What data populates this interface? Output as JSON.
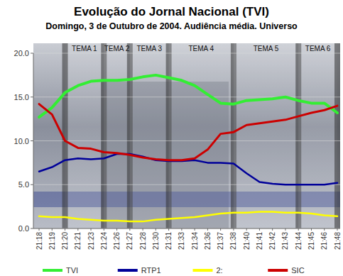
{
  "chart_data": {
    "type": "line",
    "title": "Evolução do Jornal Nacional (TVI)",
    "subtitle": "Domingo, 3 de Outubro de 2004. Audiência média. Universo",
    "categories": [
      "21:18",
      "21:19",
      "21:20",
      "21:21",
      "21:23",
      "21:24",
      "21:26",
      "21:27",
      "21:28",
      "21:30",
      "21:31",
      "21:33",
      "21:34",
      "21:36",
      "21:37",
      "21:38",
      "21:40",
      "21:41",
      "21:42",
      "21:43",
      "21:44",
      "21:45",
      "21:46",
      "21:48"
    ],
    "series": [
      {
        "name": "TVI",
        "color": "#33ee33",
        "values": [
          12.7,
          13.8,
          15.5,
          16.3,
          16.8,
          16.9,
          16.9,
          17.0,
          17.3,
          17.5,
          17.2,
          16.9,
          16.3,
          15.3,
          14.3,
          14.2,
          14.6,
          14.7,
          14.8,
          15.0,
          14.6,
          14.3,
          14.3,
          13.2
        ]
      },
      {
        "name": "RTP1",
        "color": "#000099",
        "values": [
          6.5,
          7.0,
          7.8,
          8.0,
          7.9,
          8.0,
          8.5,
          8.5,
          8.2,
          7.8,
          7.7,
          7.7,
          7.8,
          7.5,
          7.5,
          7.4,
          6.3,
          5.3,
          5.1,
          5.0,
          5.0,
          5.0,
          5.0,
          5.2
        ]
      },
      {
        "name": "2:",
        "color": "#ffff00",
        "values": [
          1.4,
          1.3,
          1.3,
          1.1,
          1.0,
          0.9,
          0.9,
          0.8,
          0.8,
          1.0,
          1.1,
          1.2,
          1.3,
          1.5,
          1.7,
          1.8,
          1.8,
          1.9,
          1.9,
          1.8,
          1.8,
          1.7,
          1.5,
          1.4
        ]
      },
      {
        "name": "SIC",
        "color": "#cc0000",
        "values": [
          14.2,
          13.0,
          10.0,
          9.2,
          9.1,
          8.7,
          8.6,
          8.4,
          8.1,
          7.9,
          7.8,
          7.8,
          8.0,
          9.0,
          10.8,
          11.0,
          11.8,
          12.0,
          12.2,
          12.4,
          12.8,
          13.2,
          13.5,
          14.0
        ]
      }
    ],
    "annotations": [
      {
        "text": "TEMA 1",
        "x_start": "21:20",
        "x_end": "21:24"
      },
      {
        "text": "TEMA 2",
        "x_start": "21:24",
        "x_end": "21:27"
      },
      {
        "text": "TEMA 3",
        "x_start": "21:27",
        "x_end": "21:31"
      },
      {
        "text": "TEMA 4",
        "x_start": "21:31",
        "x_end": "21:38"
      },
      {
        "text": "TEMA 5",
        "x_start": "21:38",
        "x_end": "21:44"
      },
      {
        "text": "TEMA 6",
        "x_start": "21:44",
        "x_end": "21:48"
      }
    ],
    "ylim": [
      0,
      20
    ],
    "yticks": [
      {
        "value": 0,
        "label": "0.0"
      },
      {
        "value": 5,
        "label": "5.0"
      },
      {
        "value": 10,
        "label": "10.0"
      },
      {
        "value": 15,
        "label": "15.0"
      },
      {
        "value": 20,
        "label": "20.0"
      }
    ],
    "grid": true,
    "legend": "bottom"
  }
}
